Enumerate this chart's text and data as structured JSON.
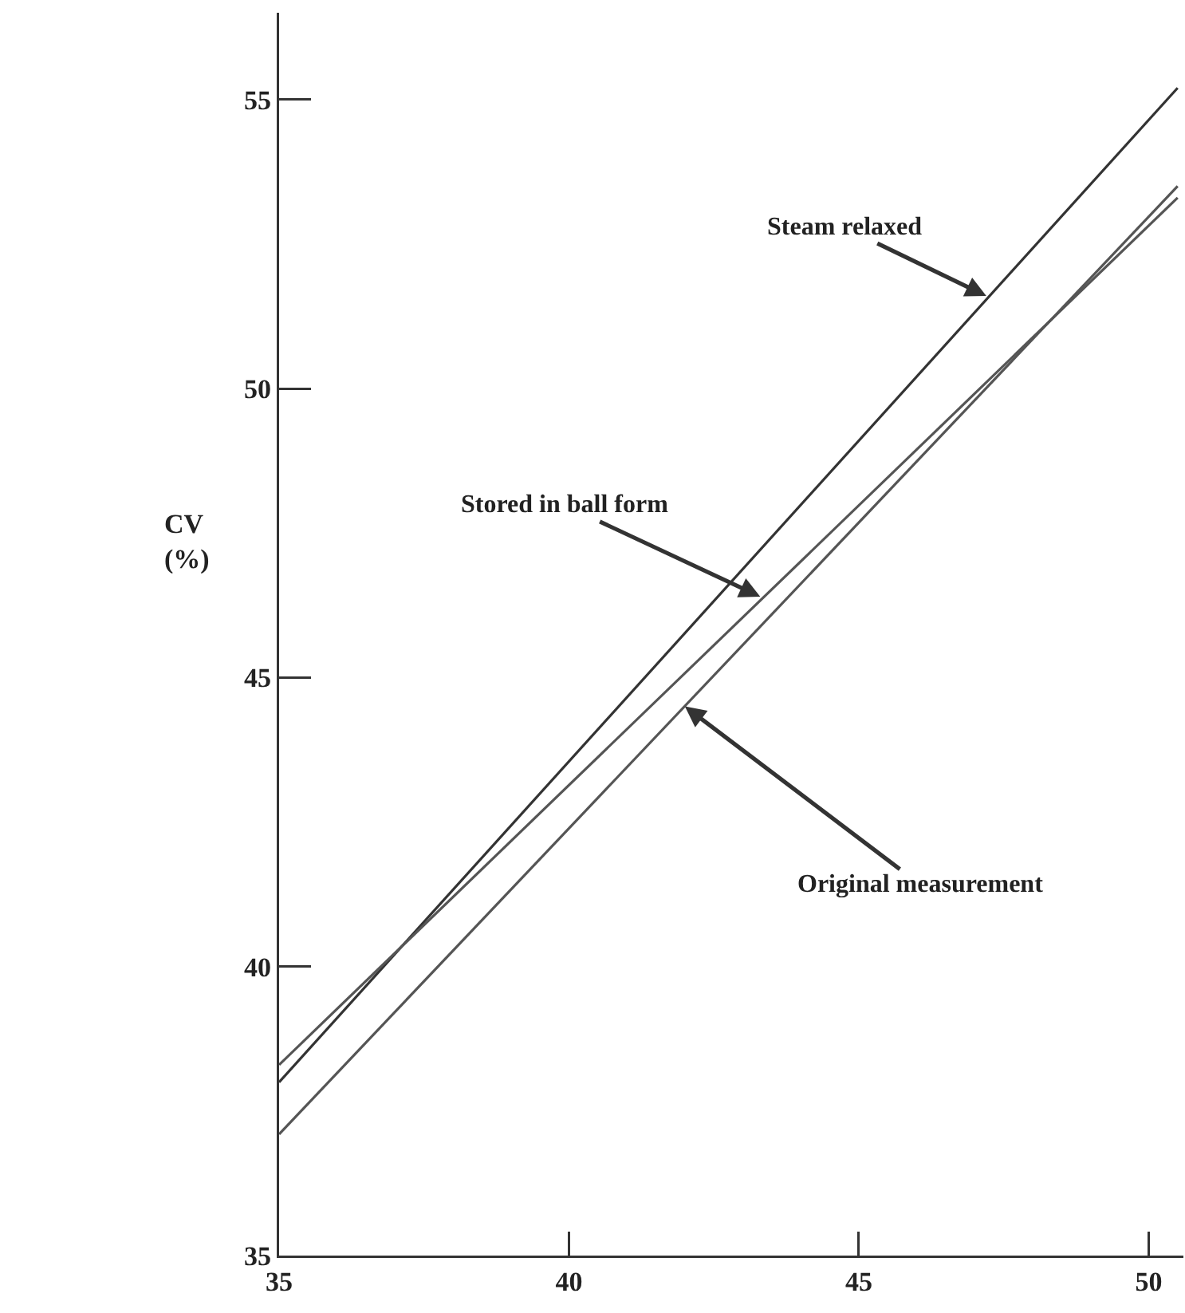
{
  "chart_data": {
    "type": "line",
    "ylabel": "CV\n(%)",
    "x": [
      35,
      50.5
    ],
    "series": [
      {
        "color": "#333333",
        "values": [
          38.0,
          55.2
        ]
      },
      {
        "color": "#555555",
        "values": [
          38.3,
          53.3
        ]
      },
      {
        "color": "#555555",
        "values": [
          37.1,
          53.5
        ]
      }
    ],
    "xlim": [
      35,
      50.6
    ],
    "ylim": [
      35,
      56.5
    ],
    "xticks": [
      35,
      40,
      45,
      50
    ],
    "yticks": [
      35,
      40,
      45,
      50,
      55
    ],
    "grid": false,
    "marker": "none",
    "line_style": "solid",
    "annotations": [
      {
        "text": "Steam relaxed",
        "x": 47.2,
        "y": 51.6
      },
      {
        "text": "Stored in ball form",
        "x": 43.3,
        "y": 46.4
      },
      {
        "text": "Original measurement",
        "x": 42.0,
        "y": 44.5
      }
    ]
  }
}
